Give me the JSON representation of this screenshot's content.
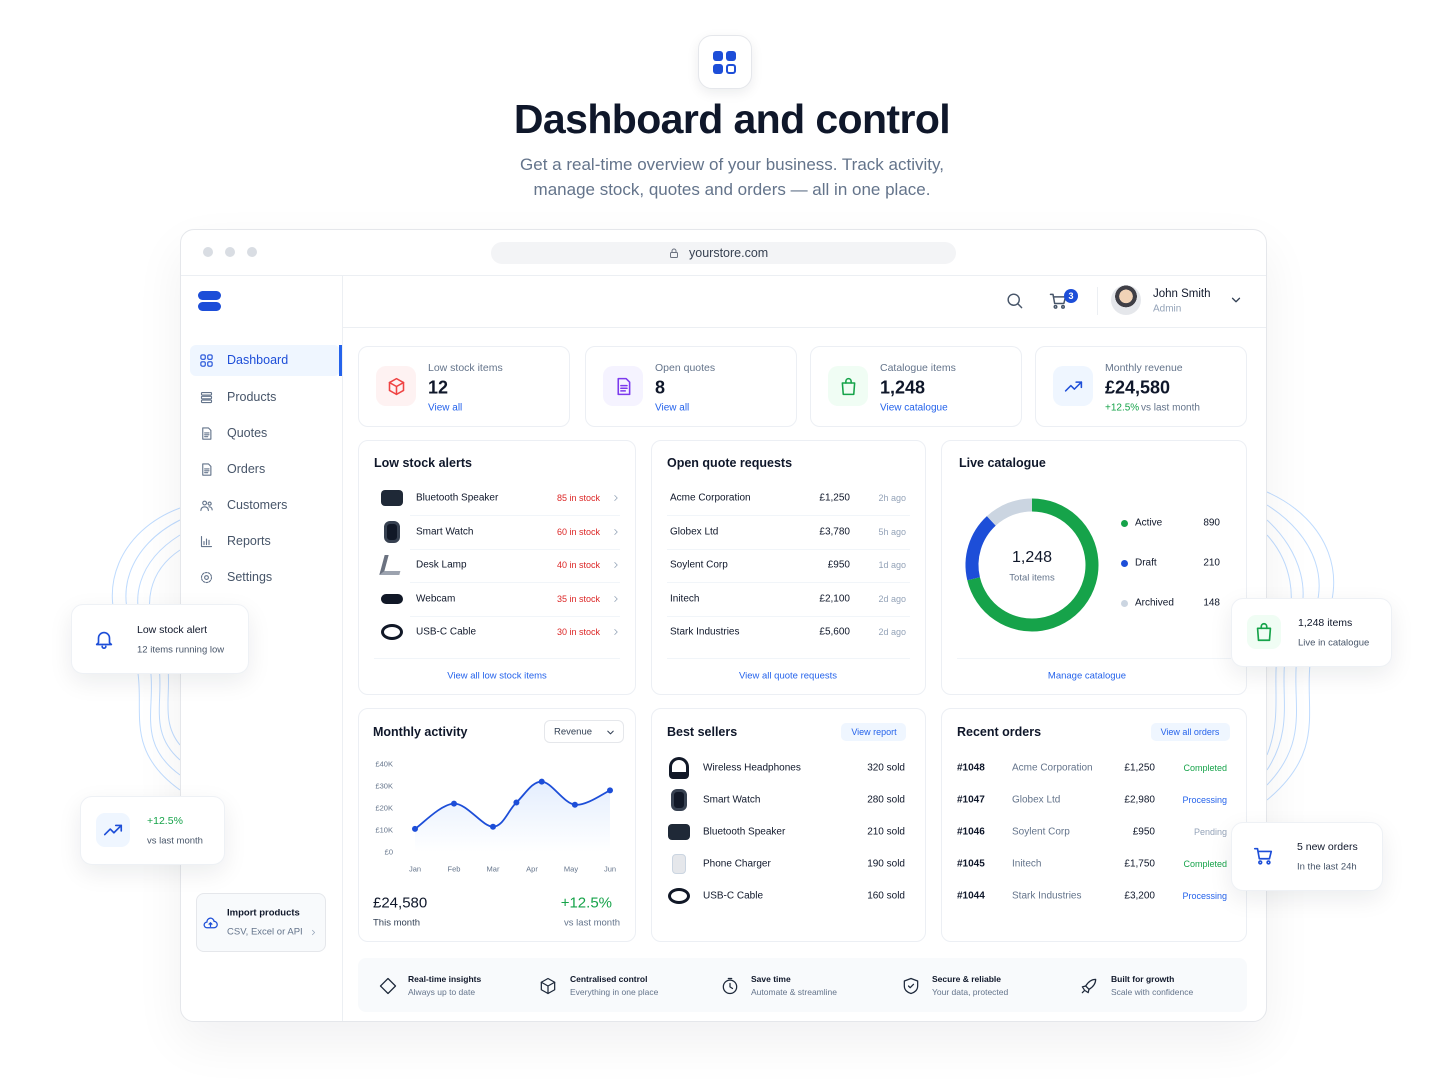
{
  "header": {
    "title": "Dashboard and control",
    "subtitle": "Get a real-time overview of your business. Track activity, manage stock, quotes and orders — all in one place."
  },
  "browser": {
    "url": "yourstore.com"
  },
  "topbar": {
    "cart_count": 3,
    "user_name": "John Smith",
    "user_role": "Admin"
  },
  "sidebar": {
    "items": [
      "Dashboard",
      "Products",
      "Quotes",
      "Orders",
      "Customers",
      "Reports",
      "Settings"
    ],
    "import": {
      "title": "Import products",
      "subtitle": "CSV, Excel or API"
    }
  },
  "stats": [
    {
      "label": "Low stock items",
      "value": "12",
      "link": "View all"
    },
    {
      "label": "Open quotes",
      "value": "8",
      "link": "View all"
    },
    {
      "label": "Catalogue items",
      "value": "1,248",
      "link": "View catalogue"
    },
    {
      "label": "Monthly revenue",
      "value": "£24,580",
      "change": "+12.5%",
      "note": "vs last month"
    }
  ],
  "low_stock": {
    "title": "Low stock alerts",
    "items": [
      {
        "name": "Bluetooth Speaker",
        "stock": "85 in stock"
      },
      {
        "name": "Smart Watch",
        "stock": "60 in stock"
      },
      {
        "name": "Desk Lamp",
        "stock": "40 in stock"
      },
      {
        "name": "Webcam",
        "stock": "35 in stock"
      },
      {
        "name": "USB-C Cable",
        "stock": "30 in stock"
      }
    ],
    "link": "View all low stock items"
  },
  "quotes": {
    "title": "Open quote requests",
    "rows": [
      {
        "company": "Acme Corporation",
        "amount": "£1,250",
        "time": "2h ago"
      },
      {
        "company": "Globex Ltd",
        "amount": "£3,780",
        "time": "5h ago"
      },
      {
        "company": "Soylent Corp",
        "amount": "£950",
        "time": "1d ago"
      },
      {
        "company": "Initech",
        "amount": "£2,100",
        "time": "2d ago"
      },
      {
        "company": "Stark Industries",
        "amount": "£5,600",
        "time": "2d ago"
      }
    ],
    "link": "View all quote requests"
  },
  "chart_data": [
    {
      "type": "line",
      "title": "Monthly activity",
      "dropdown": "Revenue",
      "color": "#1d4ed8",
      "x": [
        1,
        2,
        3,
        3.6,
        4.25,
        5.1,
        6
      ],
      "values": [
        10500,
        22000,
        11500,
        22500,
        32000,
        21500,
        28000
      ],
      "xlim": [
        0.6,
        6.4
      ],
      "xticks": [
        {
          "value": 1,
          "label": "Jan"
        },
        {
          "value": 2,
          "label": "Feb"
        },
        {
          "value": 3,
          "label": "Mar"
        },
        {
          "value": 4,
          "label": "Apr"
        },
        {
          "value": 5,
          "label": "May"
        },
        {
          "value": 6,
          "label": "Jun"
        }
      ],
      "ylim": [
        0,
        40000
      ],
      "yticks": [
        {
          "value": 0,
          "label": "£0"
        },
        {
          "value": 10000,
          "label": "£10K"
        },
        {
          "value": 20000,
          "label": "£20K"
        },
        {
          "value": 30000,
          "label": "£30K"
        },
        {
          "value": 40000,
          "label": "£40K"
        }
      ],
      "total": "£24,580",
      "total_label": "This month",
      "change": "+12.5%",
      "change_label": "vs last month"
    },
    {
      "type": "donut",
      "title": "Live catalogue",
      "center_value": "1,248",
      "center_label": "Total items",
      "categories": [
        "Active",
        "Draft",
        "Archived"
      ],
      "values": [
        890,
        210,
        148
      ],
      "colors": [
        "#16a34a",
        "#1d4ed8",
        "#cbd5e1"
      ],
      "link": "Manage catalogue"
    }
  ],
  "best_sellers": {
    "title": "Best sellers",
    "link": "View report",
    "rows": [
      {
        "name": "Wireless Headphones",
        "sold": "320 sold"
      },
      {
        "name": "Smart Watch",
        "sold": "280 sold"
      },
      {
        "name": "Bluetooth Speaker",
        "sold": "210 sold"
      },
      {
        "name": "Phone Charger",
        "sold": "190 sold"
      },
      {
        "name": "USB-C Cable",
        "sold": "160 sold"
      }
    ]
  },
  "orders": {
    "title": "Recent orders",
    "link": "View all orders",
    "rows": [
      {
        "id": "#1048",
        "customer": "Acme Corporation",
        "amount": "£1,250",
        "status": "Completed",
        "status_color": "#16a34a"
      },
      {
        "id": "#1047",
        "customer": "Globex Ltd",
        "amount": "£2,980",
        "status": "Processing",
        "status_color": "#2563eb"
      },
      {
        "id": "#1046",
        "customer": "Soylent Corp",
        "amount": "£950",
        "status": "Pending",
        "status_color": "#94a3b8"
      },
      {
        "id": "#1045",
        "customer": "Initech",
        "amount": "£1,750",
        "status": "Completed",
        "status_color": "#16a34a"
      },
      {
        "id": "#1044",
        "customer": "Stark Industries",
        "amount": "£3,200",
        "status": "Processing",
        "status_color": "#2563eb"
      }
    ]
  },
  "features": [
    {
      "title": "Real-time insights",
      "subtitle": "Always up to date"
    },
    {
      "title": "Centralised control",
      "subtitle": "Everything in one place"
    },
    {
      "title": "Save time",
      "subtitle": "Automate & streamline"
    },
    {
      "title": "Secure & reliable",
      "subtitle": "Your data, protected"
    },
    {
      "title": "Built for growth",
      "subtitle": "Scale with confidence"
    }
  ],
  "floating": [
    {
      "title": "Low stock alert",
      "subtitle": "12 items running low"
    },
    {
      "title": "+12.5%",
      "subtitle": "vs last month"
    },
    {
      "title": "1,248 items",
      "subtitle": "Live in catalogue"
    },
    {
      "title": "5 new orders",
      "subtitle": "In the last 24h"
    }
  ]
}
